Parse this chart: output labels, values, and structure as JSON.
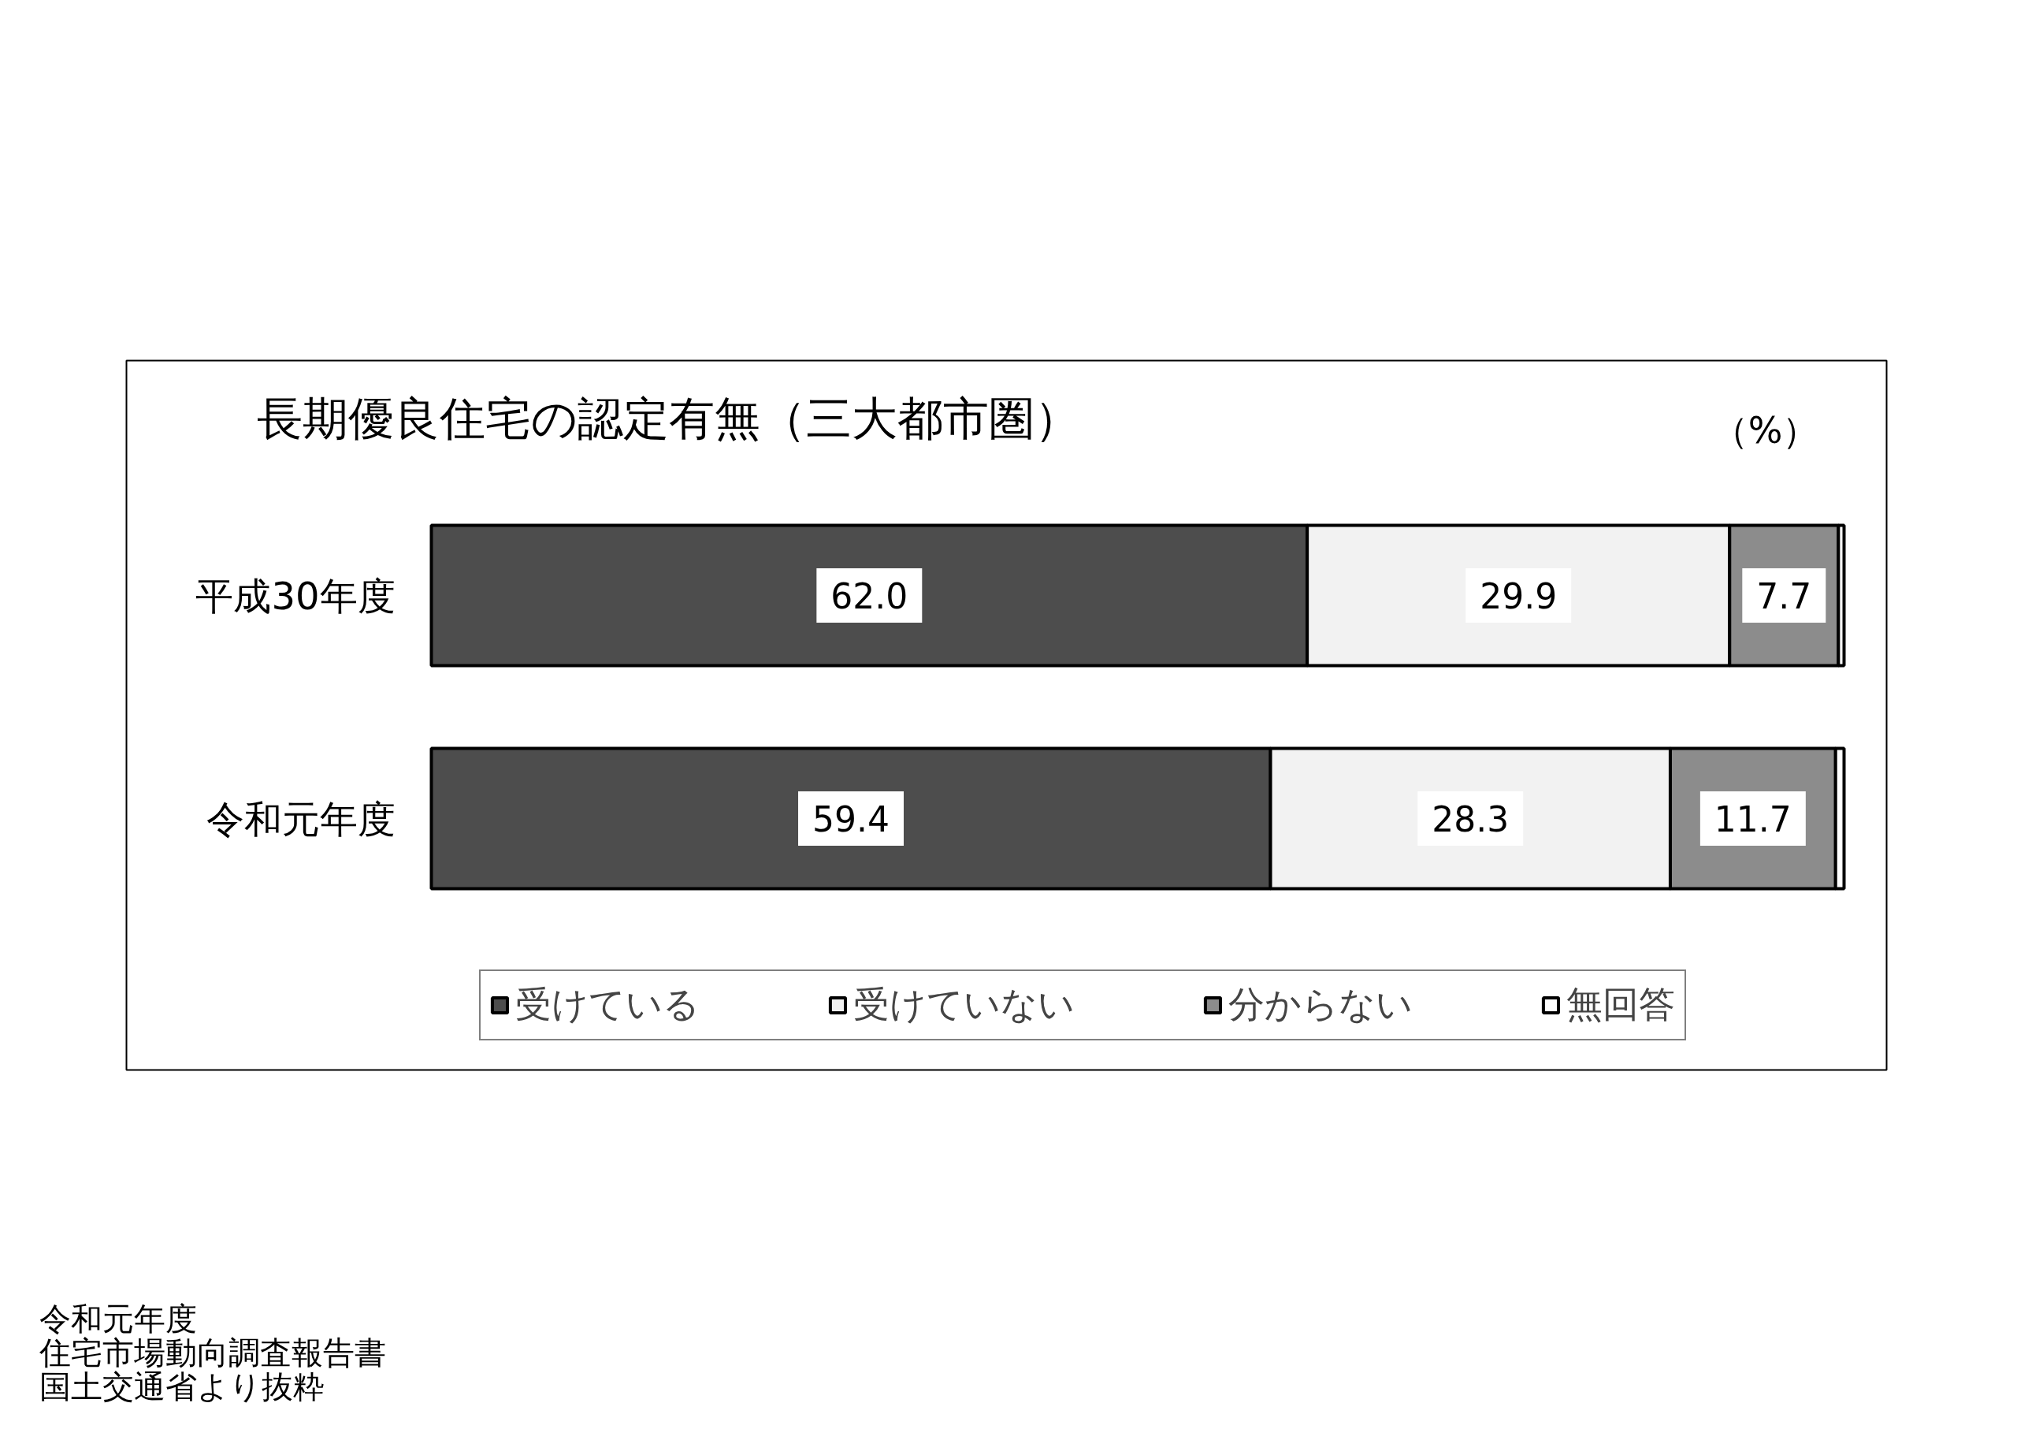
{
  "chart_data": {
    "type": "bar",
    "orientation": "horizontal",
    "stacked": true,
    "title": "長期優良住宅の認定有無（三大都市圏）",
    "categories": [
      "平成30年度",
      "令和元年度"
    ],
    "series": [
      {
        "name": "受けている",
        "color": "#4d4d4d",
        "values": [
          62.0,
          59.4
        ],
        "value_labels": [
          "62.0",
          "59.4"
        ]
      },
      {
        "name": "受けていない",
        "color": "#f2f2f2",
        "values": [
          29.9,
          28.3
        ],
        "value_labels": [
          "29.9",
          "28.3"
        ]
      },
      {
        "name": "分からない",
        "color": "#8c8c8c",
        "values": [
          7.7,
          11.7
        ],
        "value_labels": [
          "7.7",
          "11.7"
        ]
      },
      {
        "name": "無回答",
        "color": "#ffffff",
        "values": [
          0.4,
          0.6
        ]
      }
    ],
    "legend": "bottom",
    "tick_labels": "y",
    "annotations": [
      "（%）",
      "令和元年度",
      "住宅市場動向調査報告書",
      "国土交通省より抜粋"
    ]
  }
}
